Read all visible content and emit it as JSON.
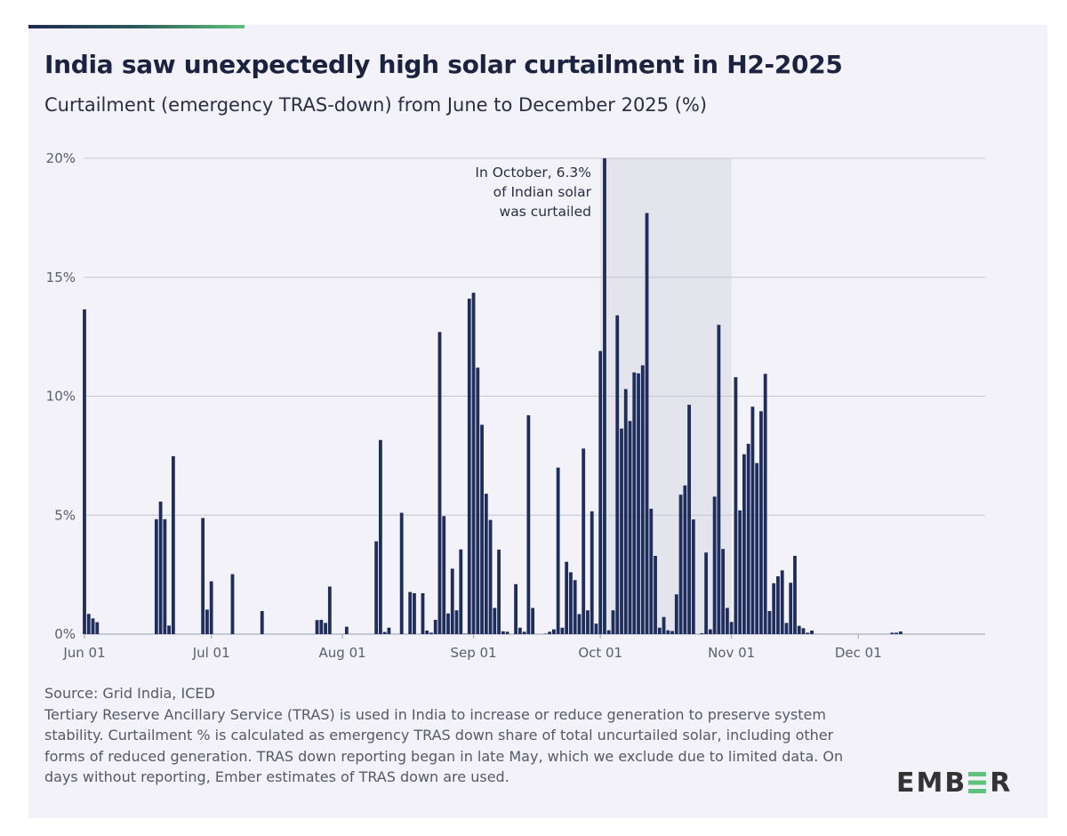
{
  "header": {
    "title": "India saw unexpectedly high solar curtailment in H2-2025",
    "subtitle": "Curtailment (emergency TRAS-down) from June to December 2025 (%)"
  },
  "chart_data": {
    "type": "bar",
    "title": "India saw unexpectedly high solar curtailment in H2-2025",
    "subtitle": "Curtailment (emergency TRAS-down) from June to December 2025 (%)",
    "xlabel": "",
    "ylabel": "",
    "xlim": [
      "2025-06-01",
      "2025-12-31"
    ],
    "ylim": [
      0,
      20
    ],
    "grid": true,
    "y_ticks": [
      {
        "value": 0,
        "label": "0%"
      },
      {
        "value": 5,
        "label": "5%"
      },
      {
        "value": 10,
        "label": "10%"
      },
      {
        "value": 15,
        "label": "15%"
      },
      {
        "value": 20,
        "label": "20%"
      }
    ],
    "x_ticks": [
      {
        "date": "2025-06-01",
        "label": "Jun 01"
      },
      {
        "date": "2025-07-01",
        "label": "Jul 01"
      },
      {
        "date": "2025-08-01",
        "label": "Aug 01"
      },
      {
        "date": "2025-09-01",
        "label": "Sep 01"
      },
      {
        "date": "2025-10-01",
        "label": "Oct 01"
      },
      {
        "date": "2025-11-01",
        "label": "Nov 01"
      },
      {
        "date": "2025-12-01",
        "label": "Dec 01"
      }
    ],
    "bar_color": "#1f2d5c",
    "highlight": {
      "start": "2025-10-01",
      "end": "2025-11-01",
      "color": "#e4e4ec"
    },
    "annotation": {
      "lines": [
        "In October, 6.3%",
        "of Indian solar",
        "was curtailed"
      ]
    },
    "points": [
      [
        "2025-06-01",
        13.65
      ],
      [
        "2025-06-02",
        0.85
      ],
      [
        "2025-06-03",
        0.66
      ],
      [
        "2025-06-04",
        0.5
      ],
      [
        "2025-06-18",
        4.83
      ],
      [
        "2025-06-19",
        5.57
      ],
      [
        "2025-06-20",
        4.83
      ],
      [
        "2025-06-21",
        0.36
      ],
      [
        "2025-06-22",
        7.48
      ],
      [
        "2025-06-29",
        4.88
      ],
      [
        "2025-06-30",
        1.03
      ],
      [
        "2025-07-01",
        2.22
      ],
      [
        "2025-07-06",
        2.52
      ],
      [
        "2025-07-13",
        0.97
      ],
      [
        "2025-07-26",
        0.59
      ],
      [
        "2025-07-27",
        0.6
      ],
      [
        "2025-07-28",
        0.47
      ],
      [
        "2025-07-29",
        2.0
      ],
      [
        "2025-08-02",
        0.31
      ],
      [
        "2025-08-09",
        3.9
      ],
      [
        "2025-08-10",
        8.16
      ],
      [
        "2025-08-11",
        0.09
      ],
      [
        "2025-08-12",
        0.27
      ],
      [
        "2025-08-15",
        5.1
      ],
      [
        "2025-08-17",
        1.77
      ],
      [
        "2025-08-18",
        1.72
      ],
      [
        "2025-08-20",
        1.72
      ],
      [
        "2025-08-21",
        0.15
      ],
      [
        "2025-08-22",
        0.06
      ],
      [
        "2025-08-23",
        0.6
      ],
      [
        "2025-08-24",
        12.7
      ],
      [
        "2025-08-25",
        4.96
      ],
      [
        "2025-08-26",
        0.87
      ],
      [
        "2025-08-27",
        2.75
      ],
      [
        "2025-08-28",
        1.0
      ],
      [
        "2025-08-29",
        3.56
      ],
      [
        "2025-08-30",
        0.02
      ],
      [
        "2025-08-31",
        14.1
      ],
      [
        "2025-09-01",
        14.35
      ],
      [
        "2025-09-02",
        11.2
      ],
      [
        "2025-09-03",
        8.8
      ],
      [
        "2025-09-04",
        5.9
      ],
      [
        "2025-09-05",
        4.8
      ],
      [
        "2025-09-06",
        1.1
      ],
      [
        "2025-09-07",
        3.55
      ],
      [
        "2025-09-08",
        0.12
      ],
      [
        "2025-09-09",
        0.1
      ],
      [
        "2025-09-11",
        2.1
      ],
      [
        "2025-09-12",
        0.27
      ],
      [
        "2025-09-13",
        0.1
      ],
      [
        "2025-09-14",
        9.2
      ],
      [
        "2025-09-15",
        1.1
      ],
      [
        "2025-09-18",
        0.02
      ],
      [
        "2025-09-19",
        0.1
      ],
      [
        "2025-09-20",
        0.2
      ],
      [
        "2025-09-21",
        7.0
      ],
      [
        "2025-09-22",
        0.27
      ],
      [
        "2025-09-23",
        3.04
      ],
      [
        "2025-09-24",
        2.6
      ],
      [
        "2025-09-25",
        2.27
      ],
      [
        "2025-09-26",
        0.84
      ],
      [
        "2025-09-27",
        7.8
      ],
      [
        "2025-09-28",
        1.0
      ],
      [
        "2025-09-29",
        5.16
      ],
      [
        "2025-09-30",
        0.44
      ],
      [
        "2025-10-01",
        11.9
      ],
      [
        "2025-10-02",
        20.0
      ],
      [
        "2025-10-03",
        0.16
      ],
      [
        "2025-10-04",
        1.0
      ],
      [
        "2025-10-05",
        13.4
      ],
      [
        "2025-10-06",
        8.64
      ],
      [
        "2025-10-07",
        10.3
      ],
      [
        "2025-10-08",
        8.96
      ],
      [
        "2025-10-09",
        11.0
      ],
      [
        "2025-10-10",
        10.96
      ],
      [
        "2025-10-11",
        11.3
      ],
      [
        "2025-10-12",
        17.7
      ],
      [
        "2025-10-13",
        5.27
      ],
      [
        "2025-10-14",
        3.29
      ],
      [
        "2025-10-15",
        0.27
      ],
      [
        "2025-10-16",
        0.72
      ],
      [
        "2025-10-17",
        0.16
      ],
      [
        "2025-10-18",
        0.13
      ],
      [
        "2025-10-19",
        1.67
      ],
      [
        "2025-10-20",
        5.86
      ],
      [
        "2025-10-21",
        6.25
      ],
      [
        "2025-10-22",
        9.64
      ],
      [
        "2025-10-23",
        4.82
      ],
      [
        "2025-10-25",
        0.04
      ],
      [
        "2025-10-26",
        3.43
      ],
      [
        "2025-10-27",
        0.2
      ],
      [
        "2025-10-28",
        5.78
      ],
      [
        "2025-10-29",
        13.0
      ],
      [
        "2025-10-30",
        3.58
      ],
      [
        "2025-10-31",
        1.1
      ],
      [
        "2025-11-01",
        0.51
      ],
      [
        "2025-11-02",
        10.8
      ],
      [
        "2025-11-03",
        5.2
      ],
      [
        "2025-11-04",
        7.56
      ],
      [
        "2025-11-05",
        8.0
      ],
      [
        "2025-11-06",
        9.56
      ],
      [
        "2025-11-07",
        7.19
      ],
      [
        "2025-11-08",
        9.37
      ],
      [
        "2025-11-09",
        10.94
      ],
      [
        "2025-11-10",
        0.97
      ],
      [
        "2025-11-11",
        2.14
      ],
      [
        "2025-11-12",
        2.43
      ],
      [
        "2025-11-13",
        2.68
      ],
      [
        "2025-11-14",
        0.47
      ],
      [
        "2025-11-15",
        2.16
      ],
      [
        "2025-11-16",
        3.29
      ],
      [
        "2025-11-17",
        0.35
      ],
      [
        "2025-11-18",
        0.25
      ],
      [
        "2025-11-19",
        0.06
      ],
      [
        "2025-11-20",
        0.15
      ],
      [
        "2025-12-09",
        0.06
      ],
      [
        "2025-12-10",
        0.06
      ],
      [
        "2025-12-11",
        0.11
      ]
    ]
  },
  "footer": {
    "source": "Source: Grid India, ICED",
    "note": "Tertiary Reserve Ancillary Service (TRAS) is used in India to increase or reduce generation to preserve system stability. Curtailment % is calculated as emergency TRAS down share of total uncurtailed solar, including other forms of reduced generation. TRAS down reporting began in late May, which we exclude due to limited data. On days without reporting, Ember estimates of TRAS down are used."
  },
  "logo": {
    "text": "EMBER",
    "accent": "#5fc27a"
  }
}
